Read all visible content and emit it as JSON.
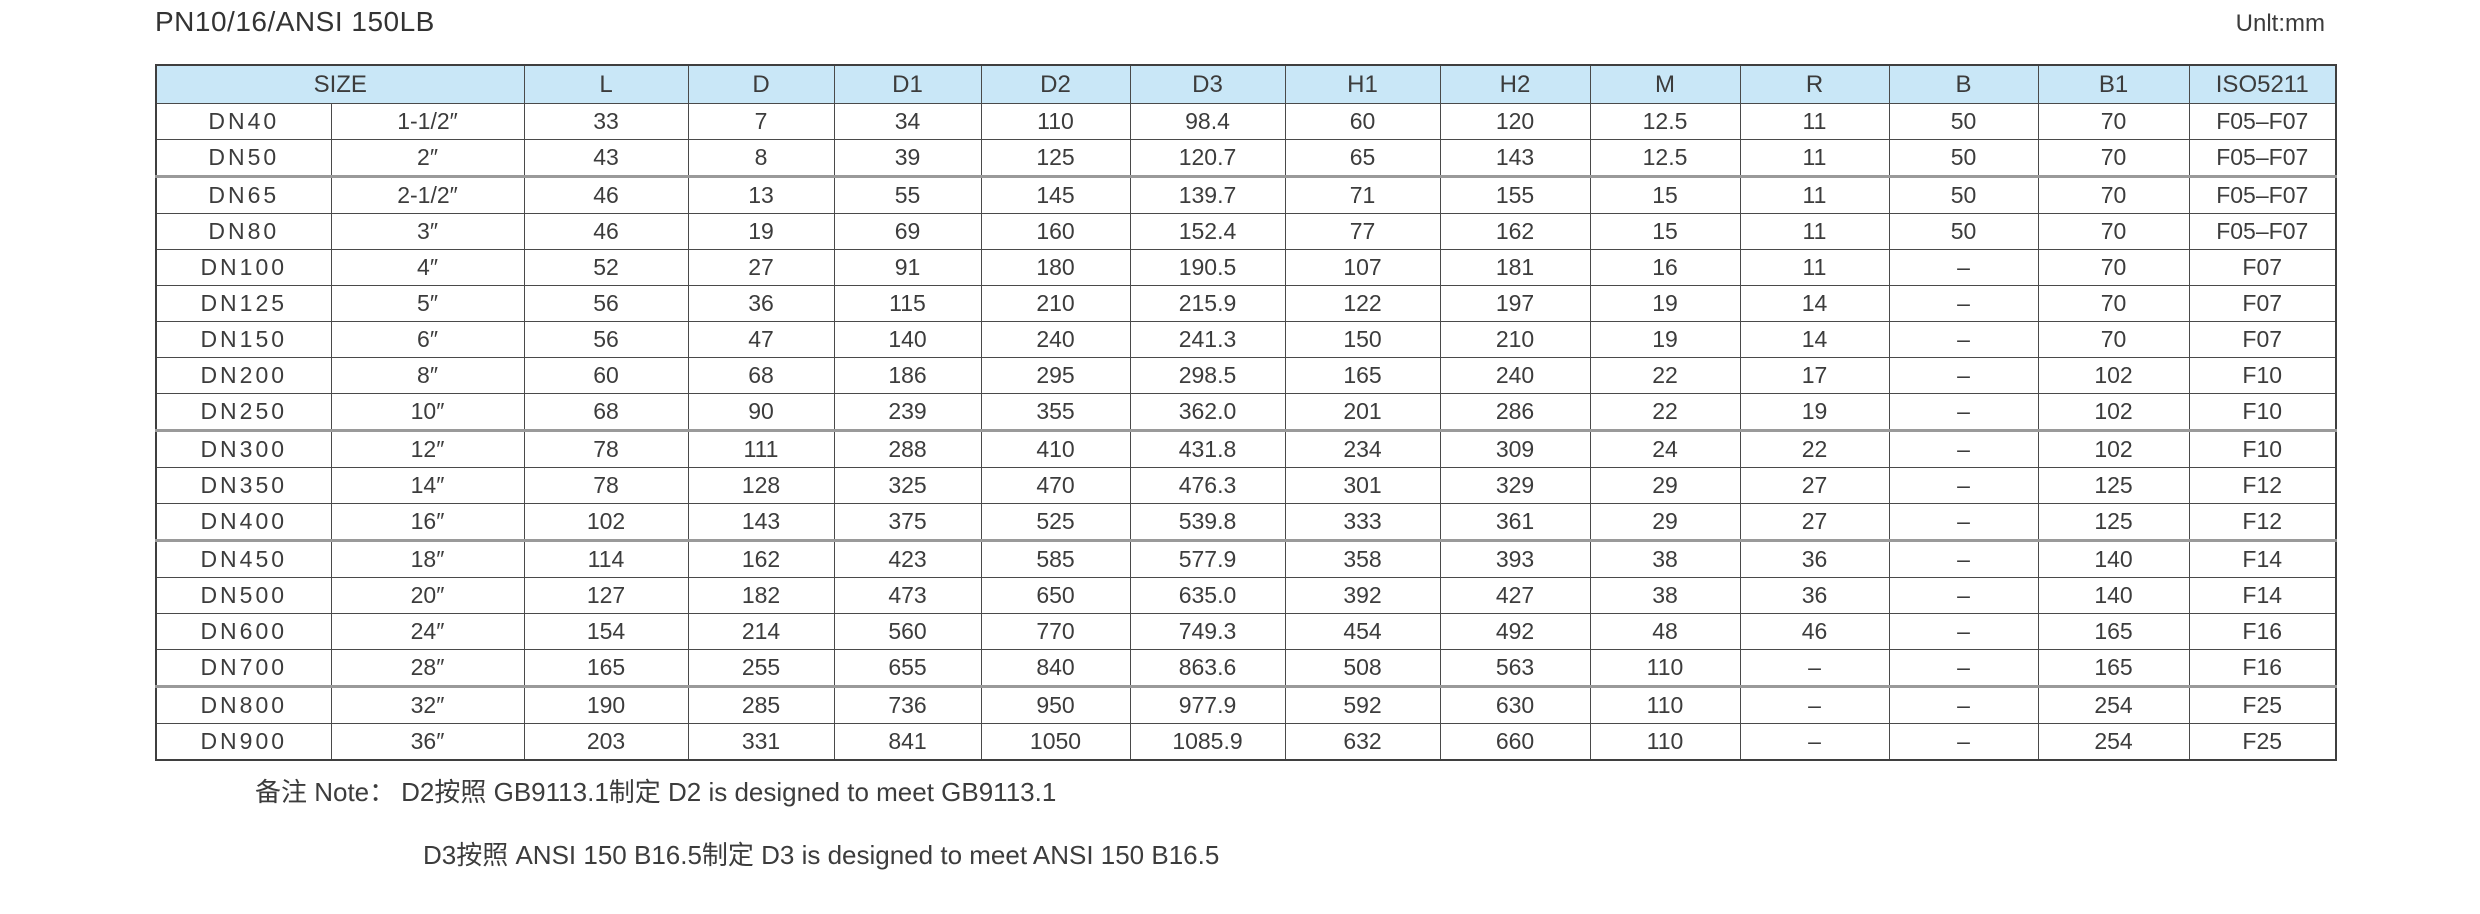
{
  "page": {
    "title": "PN10/16/ANSI 150LB",
    "unit_label": "Unlt:mm"
  },
  "table": {
    "size_header": "SIZE",
    "columns": [
      "L",
      "D",
      "D1",
      "D2",
      "D3",
      "H1",
      "H2",
      "M",
      "R",
      "B",
      "B1",
      "ISO5211"
    ],
    "rows": [
      {
        "dn": "DN40",
        "inch": "1-1/2″",
        "values": [
          "33",
          "7",
          "34",
          "110",
          "98.4",
          "60",
          "120",
          "12.5",
          "11",
          "50",
          "70",
          "F05–F07"
        ]
      },
      {
        "dn": "DN50",
        "inch": "2″",
        "values": [
          "43",
          "8",
          "39",
          "125",
          "120.7",
          "65",
          "143",
          "12.5",
          "11",
          "50",
          "70",
          "F05–F07"
        ]
      },
      {
        "dn": "DN65",
        "inch": "2-1/2″",
        "values": [
          "46",
          "13",
          "55",
          "145",
          "139.7",
          "71",
          "155",
          "15",
          "11",
          "50",
          "70",
          "F05–F07"
        ]
      },
      {
        "dn": "DN80",
        "inch": "3″",
        "values": [
          "46",
          "19",
          "69",
          "160",
          "152.4",
          "77",
          "162",
          "15",
          "11",
          "50",
          "70",
          "F05–F07"
        ]
      },
      {
        "dn": "DN100",
        "inch": "4″",
        "values": [
          "52",
          "27",
          "91",
          "180",
          "190.5",
          "107",
          "181",
          "16",
          "11",
          "–",
          "70",
          "F07"
        ]
      },
      {
        "dn": "DN125",
        "inch": "5″",
        "values": [
          "56",
          "36",
          "115",
          "210",
          "215.9",
          "122",
          "197",
          "19",
          "14",
          "–",
          "70",
          "F07"
        ]
      },
      {
        "dn": "DN150",
        "inch": "6″",
        "values": [
          "56",
          "47",
          "140",
          "240",
          "241.3",
          "150",
          "210",
          "19",
          "14",
          "–",
          "70",
          "F07"
        ]
      },
      {
        "dn": "DN200",
        "inch": "8″",
        "values": [
          "60",
          "68",
          "186",
          "295",
          "298.5",
          "165",
          "240",
          "22",
          "17",
          "–",
          "102",
          "F10"
        ]
      },
      {
        "dn": "DN250",
        "inch": "10″",
        "values": [
          "68",
          "90",
          "239",
          "355",
          "362.0",
          "201",
          "286",
          "22",
          "19",
          "–",
          "102",
          "F10"
        ]
      },
      {
        "dn": "DN300",
        "inch": "12″",
        "values": [
          "78",
          "111",
          "288",
          "410",
          "431.8",
          "234",
          "309",
          "24",
          "22",
          "–",
          "102",
          "F10"
        ]
      },
      {
        "dn": "DN350",
        "inch": "14″",
        "values": [
          "78",
          "128",
          "325",
          "470",
          "476.3",
          "301",
          "329",
          "29",
          "27",
          "–",
          "125",
          "F12"
        ]
      },
      {
        "dn": "DN400",
        "inch": "16″",
        "values": [
          "102",
          "143",
          "375",
          "525",
          "539.8",
          "333",
          "361",
          "29",
          "27",
          "–",
          "125",
          "F12"
        ]
      },
      {
        "dn": "DN450",
        "inch": "18″",
        "values": [
          "114",
          "162",
          "423",
          "585",
          "577.9",
          "358",
          "393",
          "38",
          "36",
          "–",
          "140",
          "F14"
        ]
      },
      {
        "dn": "DN500",
        "inch": "20″",
        "values": [
          "127",
          "182",
          "473",
          "650",
          "635.0",
          "392",
          "427",
          "38",
          "36",
          "–",
          "140",
          "F14"
        ]
      },
      {
        "dn": "DN600",
        "inch": "24″",
        "values": [
          "154",
          "214",
          "560",
          "770",
          "749.3",
          "454",
          "492",
          "48",
          "46",
          "–",
          "165",
          "F16"
        ]
      },
      {
        "dn": "DN700",
        "inch": "28″",
        "values": [
          "165",
          "255",
          "655",
          "840",
          "863.6",
          "508",
          "563",
          "110",
          "–",
          "–",
          "165",
          "F16"
        ]
      },
      {
        "dn": "DN800",
        "inch": "32″",
        "values": [
          "190",
          "285",
          "736",
          "950",
          "977.9",
          "592",
          "630",
          "110",
          "–",
          "–",
          "254",
          "F25"
        ]
      },
      {
        "dn": "DN900",
        "inch": "36″",
        "values": [
          "203",
          "331",
          "841",
          "1050",
          "1085.9",
          "632",
          "660",
          "110",
          "–",
          "–",
          "254",
          "F25"
        ]
      }
    ]
  },
  "notes": {
    "label": "备注 Note：",
    "lines": [
      "D2按照 GB9113.1制定  D2 is designed to meet GB9113.1",
      "D3按照 ANSI 150 B16.5制定  D3 is designed to meet ANSI 150 B16.5"
    ]
  },
  "colors": {
    "header_background": "#c9e7f7",
    "border": "#4a4a4a",
    "group_divider": "#9a9a9a",
    "text": "#3c3c3c"
  }
}
